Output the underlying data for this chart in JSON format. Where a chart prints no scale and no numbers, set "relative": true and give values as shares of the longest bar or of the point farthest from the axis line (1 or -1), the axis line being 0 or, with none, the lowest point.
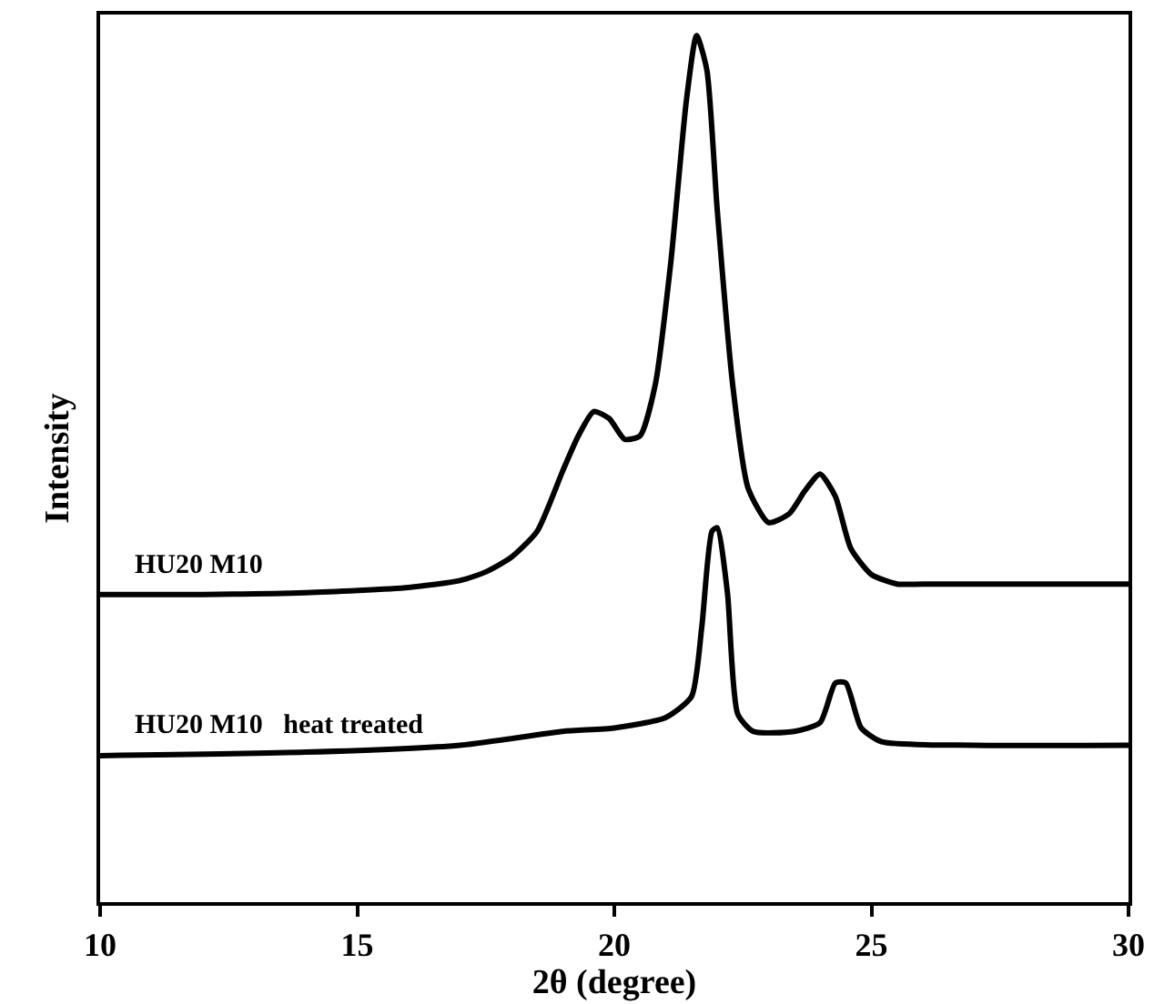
{
  "chart_data": {
    "type": "line",
    "relative": true,
    "xlabel": "2θ (degree)",
    "ylabel": "Intensity",
    "xlim": [
      10,
      30
    ],
    "xticks": [
      10,
      15,
      20,
      25,
      30
    ],
    "grid": false,
    "legend": false,
    "marker": "none",
    "line_style": "solid",
    "series": [
      {
        "name": "HU20 M10",
        "color": "#000000",
        "x": [
          10,
          12,
          14,
          16,
          17,
          17.5,
          18,
          18.5,
          19,
          19.3,
          19.6,
          19.9,
          20.2,
          20.5,
          20.8,
          21.1,
          21.4,
          21.6,
          21.8,
          22,
          22.3,
          22.6,
          23,
          23.4,
          23.7,
          24,
          24.3,
          24.6,
          25,
          25.5,
          26,
          28,
          30
        ],
        "values": [
          0.355,
          0.355,
          0.357,
          0.363,
          0.371,
          0.381,
          0.398,
          0.428,
          0.498,
          0.538,
          0.566,
          0.558,
          0.534,
          0.538,
          0.598,
          0.739,
          0.924,
          1,
          0.96,
          0.8,
          0.598,
          0.478,
          0.438,
          0.448,
          0.474,
          0.494,
          0.468,
          0.408,
          0.378,
          0.367,
          0.367,
          0.367,
          0.367
        ]
      },
      {
        "name": "HU20 M10   heat treated",
        "color": "#000000",
        "x": [
          10,
          14,
          17,
          19,
          20,
          21,
          21.5,
          21.7,
          21.9,
          22,
          22.2,
          22.4,
          22.7,
          23.5,
          24,
          24.3,
          24.5,
          24.8,
          25.2,
          27,
          30
        ],
        "values": [
          0.169,
          0.173,
          0.181,
          0.197,
          0.201,
          0.213,
          0.237,
          0.317,
          0.428,
          0.432,
          0.357,
          0.217,
          0.197,
          0.197,
          0.207,
          0.253,
          0.253,
          0.201,
          0.185,
          0.181,
          0.181
        ]
      }
    ]
  }
}
